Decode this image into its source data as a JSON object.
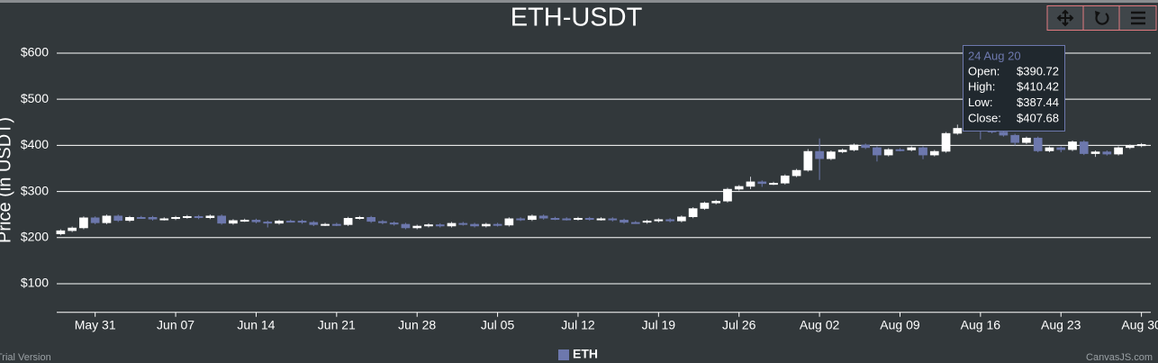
{
  "chart_data": {
    "type": "candlestick",
    "title": "ETH-USDT",
    "y_label": "Price (in USDT)",
    "categories": [
      null,
      null,
      null,
      "May 31",
      null,
      null,
      null,
      null,
      null,
      null,
      "Jun 07",
      null,
      null,
      null,
      null,
      null,
      null,
      "Jun 14",
      null,
      null,
      null,
      null,
      null,
      null,
      "Jun 21",
      null,
      null,
      null,
      null,
      null,
      null,
      "Jun 28",
      null,
      null,
      null,
      null,
      null,
      null,
      "Jul 05",
      null,
      null,
      null,
      null,
      null,
      null,
      "Jul 12",
      null,
      null,
      null,
      null,
      null,
      null,
      "Jul 19",
      null,
      null,
      null,
      null,
      null,
      null,
      "Jul 26",
      null,
      null,
      null,
      null,
      null,
      null,
      "Aug 02",
      null,
      null,
      null,
      null,
      null,
      null,
      "Aug 09",
      null,
      null,
      null,
      null,
      null,
      null,
      "Aug 16",
      null,
      null,
      null,
      null,
      null,
      null,
      "Aug 23",
      null,
      null,
      null,
      null,
      null,
      null,
      "Aug 30"
    ],
    "series": [
      {
        "name": "ETH",
        "color": "#6d78ad",
        "rising_color": "#ffffff",
        "open": [
          208,
          215,
          221,
          243,
          232,
          247,
          237,
          244,
          244,
          240,
          241,
          244,
          246,
          243,
          247,
          231,
          237,
          238,
          234,
          231,
          236,
          236,
          233,
          228,
          229,
          228,
          242,
          244,
          235,
          232,
          229,
          221,
          225,
          228,
          225,
          231,
          229,
          225,
          229,
          227,
          241,
          239,
          247,
          242,
          241,
          240,
          242,
          240,
          241,
          238,
          233,
          233,
          236,
          239,
          236,
          245,
          263,
          275,
          279,
          305,
          311,
          321,
          317,
          318,
          334,
          346,
          387,
          371,
          386,
          390,
          401,
          395,
          379,
          391,
          390,
          395,
          379,
          387,
          426,
          437,
          434,
          433,
          429,
          422,
          406,
          416,
          388,
          395,
          390.72,
          407.68,
          382,
          386,
          381,
          395,
          399
        ],
        "high": [
          218,
          224,
          246,
          246,
          250,
          250,
          247,
          247,
          247,
          244,
          247,
          249,
          249,
          250,
          250,
          240,
          241,
          241,
          237,
          239,
          239,
          239,
          236,
          232,
          232,
          245,
          247,
          247,
          238,
          235,
          232,
          228,
          231,
          231,
          234,
          234,
          232,
          232,
          232,
          244,
          244,
          250,
          250,
          245,
          244,
          245,
          245,
          244,
          244,
          241,
          236,
          239,
          242,
          242,
          248,
          266,
          278,
          282,
          308,
          314,
          332,
          324,
          321,
          337,
          349,
          392,
          415,
          389,
          393,
          404,
          404,
          398,
          394,
          394,
          398,
          398,
          390,
          429,
          445,
          440,
          437,
          436,
          432,
          425,
          419,
          419,
          398,
          398,
          410.42,
          411,
          389,
          389,
          398,
          402,
          405
        ],
        "low": [
          205,
          212,
          218,
          229,
          229,
          234,
          234,
          241,
          237,
          237,
          238,
          241,
          240,
          240,
          228,
          228,
          234,
          231,
          222,
          228,
          233,
          230,
          225,
          225,
          225,
          225,
          239,
          232,
          229,
          226,
          218,
          218,
          222,
          222,
          222,
          226,
          222,
          222,
          224,
          224,
          236,
          236,
          239,
          238,
          237,
          237,
          237,
          237,
          235,
          230,
          230,
          230,
          233,
          233,
          233,
          242,
          260,
          272,
          276,
          302,
          305,
          310,
          314,
          315,
          331,
          343,
          325,
          368,
          383,
          387,
          392,
          365,
          376,
          387,
          387,
          370,
          376,
          384,
          423,
          431,
          413,
          426,
          419,
          400,
          403,
          385,
          385,
          385,
          387.44,
          379,
          375,
          378,
          378,
          392,
          396
        ],
        "close": [
          215,
          221,
          243,
          232,
          247,
          237,
          244,
          244,
          240,
          241,
          244,
          246,
          243,
          247,
          231,
          237,
          238,
          234,
          231,
          236,
          236,
          233,
          228,
          229,
          228,
          242,
          244,
          235,
          232,
          229,
          221,
          225,
          228,
          225,
          231,
          229,
          225,
          229,
          227,
          241,
          239,
          247,
          242,
          241,
          240,
          242,
          240,
          241,
          238,
          233,
          233,
          236,
          239,
          236,
          245,
          263,
          275,
          279,
          305,
          311,
          321,
          317,
          318,
          334,
          346,
          387,
          371,
          386,
          390,
          401,
          395,
          379,
          391,
          390,
          395,
          379,
          387,
          426,
          437,
          434,
          433,
          429,
          422,
          406,
          416,
          388,
          395,
          390.72,
          407.68,
          382,
          386,
          381,
          395,
          399,
          402
        ]
      }
    ],
    "ylim": [
      40,
      640
    ],
    "yticks": [
      {
        "value": 100,
        "label": "$100"
      },
      {
        "value": 200,
        "label": "$200"
      },
      {
        "value": 300,
        "label": "$300"
      },
      {
        "value": 400,
        "label": "$400"
      },
      {
        "value": 500,
        "label": "$500"
      },
      {
        "value": 600,
        "label": "$600"
      }
    ],
    "grid": true,
    "tooltip": {
      "title": "24 Aug 20",
      "rows": [
        {
          "label": "Open:",
          "value": "$390.72"
        },
        {
          "label": "High:",
          "value": "$410.42"
        },
        {
          "label": "Low:",
          "value": "$387.44"
        },
        {
          "label": "Close:",
          "value": "$407.68"
        }
      ]
    },
    "watermark_left": "Trial Version",
    "watermark_right": "CanvasJS.com"
  }
}
